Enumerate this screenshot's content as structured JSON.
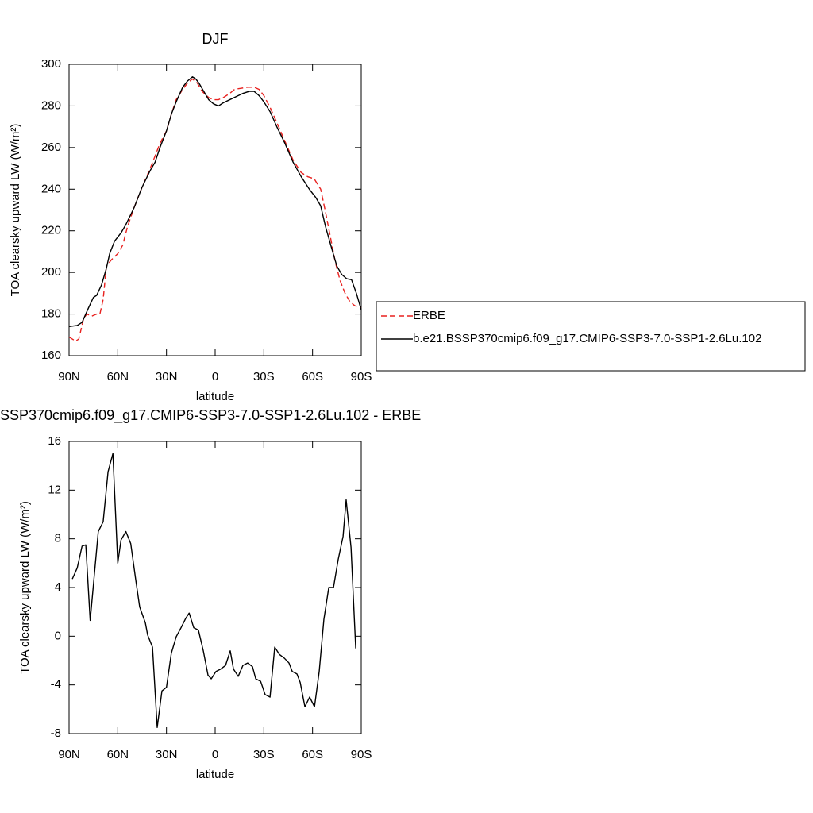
{
  "chart_data": [
    {
      "type": "line",
      "title": "DJF",
      "xlabel": "latitude",
      "ylabel": "TOA clearsky upward LW (W/m²)",
      "xlim": [
        90,
        -90
      ],
      "xticks": [
        {
          "value": 90,
          "label": "90N"
        },
        {
          "value": 60,
          "label": "60N"
        },
        {
          "value": 30,
          "label": "30N"
        },
        0,
        {
          "value": -30,
          "label": "30S"
        },
        {
          "value": -60,
          "label": "60S"
        },
        {
          "value": -90,
          "label": "90S"
        }
      ],
      "ylim": [
        160,
        300
      ],
      "yticks": [
        160,
        180,
        200,
        220,
        240,
        260,
        280,
        300
      ],
      "legend": "outside-right",
      "series": [
        {
          "name": "ERBE",
          "color": "#e8211f",
          "line_style": "dashed",
          "x": [
            90,
            88,
            86,
            84,
            81,
            79,
            76,
            73,
            71,
            69,
            67,
            64,
            60,
            57,
            54,
            50,
            45,
            40,
            37,
            34,
            30,
            27,
            24,
            20,
            17,
            14,
            11,
            8,
            4,
            1,
            -2,
            -5,
            -9,
            -12,
            -16,
            -20,
            -24,
            -27,
            -30,
            -34,
            -38,
            -43,
            -48,
            -53,
            -57,
            -61,
            -65,
            -68,
            -71,
            -74,
            -77,
            -80,
            -83,
            -86,
            -90
          ],
          "values": [
            169,
            168,
            167,
            168,
            178,
            180,
            179,
            180,
            180,
            187,
            203,
            206,
            209,
            213,
            222,
            231,
            241,
            250,
            256,
            262,
            268,
            276,
            283,
            288,
            291,
            293,
            291,
            287,
            284,
            283,
            283,
            284,
            286,
            288,
            288.5,
            289,
            289,
            288,
            285,
            279,
            272,
            263,
            254,
            248,
            246,
            245,
            240,
            229,
            217,
            205,
            196,
            190,
            186,
            184,
            183
          ]
        },
        {
          "name": "b.e21.BSSP370cmip6.f09_g17.CMIP6-SSP3-7.0-SSP1-2.6Lu.102",
          "color": "#000000",
          "line_style": "solid",
          "x": [
            90,
            85,
            82,
            78,
            75,
            73,
            70,
            67,
            65,
            62,
            58,
            55,
            50,
            45,
            40,
            37,
            34,
            30,
            27,
            24,
            20,
            17,
            14,
            12,
            10,
            7,
            4,
            1,
            -2,
            -5,
            -9,
            -13,
            -17,
            -21,
            -24,
            -27,
            -30,
            -34,
            -38,
            -43,
            -48,
            -53,
            -58,
            -62,
            -65,
            -68,
            -72,
            -75,
            -78,
            -81,
            -84,
            -87,
            -90
          ],
          "values": [
            174,
            174.5,
            176,
            183,
            188,
            189,
            194,
            202,
            209,
            215,
            219,
            223,
            231,
            241,
            249,
            253,
            260,
            268,
            276,
            282,
            289,
            292,
            294,
            293,
            291,
            287,
            283,
            281,
            280,
            281.5,
            283,
            284.5,
            286,
            287,
            287,
            285,
            282,
            277,
            270,
            262,
            253,
            246,
            240,
            236,
            232,
            222,
            211,
            203,
            199,
            197,
            196.5,
            190,
            182
          ]
        }
      ]
    },
    {
      "type": "line",
      "title": "SSP370cmip6.f09_g17.CMIP6-SSP3-7.0-SSP1-2.6Lu.102 - ERBE",
      "xlabel": "latitude",
      "ylabel": "TOA clearsky upward LW (W/m²)",
      "xlim": [
        90,
        -90
      ],
      "xticks": [
        {
          "value": 90,
          "label": "90N"
        },
        {
          "value": 60,
          "label": "60N"
        },
        {
          "value": 30,
          "label": "30N"
        },
        0,
        {
          "value": -30,
          "label": "30S"
        },
        {
          "value": -60,
          "label": "60S"
        },
        {
          "value": -90,
          "label": "90S"
        }
      ],
      "ylim": [
        -8,
        16
      ],
      "yticks": [
        -8,
        -4,
        0,
        4,
        8,
        12,
        16
      ],
      "series": [
        {
          "color": "#000000",
          "line_style": "solid",
          "x": [
            88,
            85,
            82,
            79.7,
            77,
            72,
            69,
            66,
            63,
            60,
            58,
            55,
            52,
            49,
            46.5,
            43,
            41.6,
            38.6,
            35.7,
            32.8,
            30,
            27,
            24,
            21,
            18,
            16,
            13.2,
            10.3,
            7.3,
            4.4,
            2.4,
            -0.5,
            -3.4,
            -6.4,
            -9.3,
            -11.3,
            -14.2,
            -17.1,
            -20,
            -23,
            -25,
            -28,
            -30.8,
            -33.8,
            -36.7,
            -39.6,
            -42.6,
            -45.5,
            -47.5,
            -50.4,
            -52.4,
            -55.3,
            -58.2,
            -61.2,
            -64.1,
            -67,
            -70,
            -72.9,
            -75.8,
            -78.8,
            -80.7,
            -83.7,
            -86.6
          ],
          "values": [
            4.7,
            5.6,
            7.4,
            7.5,
            1.3,
            8.6,
            9.4,
            13.5,
            15,
            6,
            7.9,
            8.6,
            7.6,
            4.7,
            2.4,
            1.1,
            0.1,
            -0.9,
            -7.5,
            -4.5,
            -4.2,
            -1.4,
            -0.05,
            0.7,
            1.5,
            1.9,
            0.7,
            0.5,
            -1.2,
            -3.2,
            -3.5,
            -2.9,
            -2.7,
            -2.4,
            -1.2,
            -2.7,
            -3.3,
            -2.4,
            -2.2,
            -2.5,
            -3.5,
            -3.7,
            -4.8,
            -5,
            -0.9,
            -1.5,
            -1.8,
            -2.2,
            -2.9,
            -3.1,
            -3.8,
            -5.8,
            -5,
            -5.8,
            -2.9,
            1.4,
            4,
            4,
            6.3,
            8.2,
            11.2,
            7.3,
            -1
          ]
        }
      ]
    }
  ]
}
